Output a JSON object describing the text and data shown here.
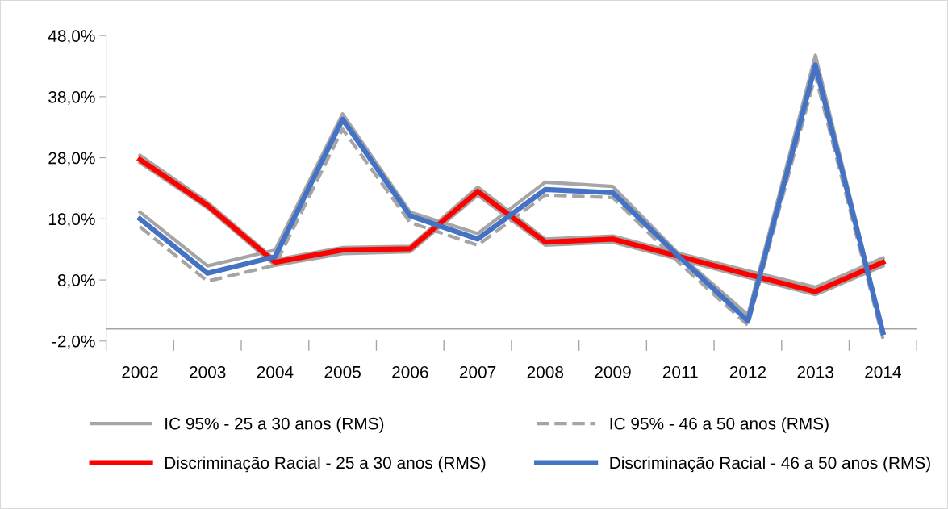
{
  "chart_data": {
    "type": "line",
    "categories": [
      "2002",
      "2003",
      "2004",
      "2005",
      "2006",
      "2007",
      "2008",
      "2009",
      "2011",
      "2012",
      "2013",
      "2014"
    ],
    "ylim": [
      -2,
      48
    ],
    "yticks": [
      {
        "value": -2,
        "label": "-2,0%"
      },
      {
        "value": 8,
        "label": "8,0%"
      },
      {
        "value": 18,
        "label": "18,0%"
      },
      {
        "value": 28,
        "label": "28,0%"
      },
      {
        "value": 38,
        "label": "38,0%"
      },
      {
        "value": 48,
        "label": "48,0%"
      }
    ],
    "grid": false,
    "legend": "bottom",
    "marker": "none",
    "series": [
      {
        "name": "IC 95% - 25 a 30 anos (RMS)",
        "color": "#a5a5a5",
        "line_style": "solid",
        "values": [
          28.4,
          20.7,
          11.3,
          13.3,
          13.5,
          23.2,
          14.7,
          15.2,
          12.3,
          9.5,
          6.8,
          11.6
        ]
      },
      {
        "color": "#a5a5a5",
        "line_style": "solid",
        "values": [
          27.2,
          19.8,
          10.4,
          12.3,
          12.6,
          21.9,
          13.7,
          14.2,
          11.3,
          8.4,
          5.6,
          10.3
        ]
      },
      {
        "color": "#a5a5a5",
        "line_style": "solid",
        "values": [
          19.1,
          10.3,
          12.9,
          35.2,
          19.1,
          15.6,
          24.0,
          23.3,
          12.0,
          2.3,
          44.8,
          -0.5
        ]
      },
      {
        "name": "IC 95% - 46 a 50 anos (RMS)",
        "color": "#a5a5a5",
        "line_style": "dashed",
        "values": [
          16.7,
          7.8,
          10.4,
          32.7,
          17.4,
          13.7,
          21.9,
          21.5,
          10.6,
          0.6,
          41.5,
          -1.6
        ]
      },
      {
        "name": "Discriminação Racial - 25 a 30 anos (RMS)",
        "color": "#ff0000",
        "line_style": "solid",
        "values": [
          27.7,
          20.2,
          10.9,
          12.9,
          13.1,
          22.5,
          14.2,
          14.7,
          11.8,
          8.9,
          6.1,
          10.9
        ]
      },
      {
        "name": "Discriminação Racial - 46 a 50 anos (RMS)",
        "color": "#4472c4",
        "line_style": "solid",
        "values": [
          18.0,
          9.1,
          11.8,
          34.3,
          18.5,
          14.7,
          22.8,
          22.3,
          11.6,
          1.3,
          43.2,
          -0.6
        ]
      }
    ]
  }
}
